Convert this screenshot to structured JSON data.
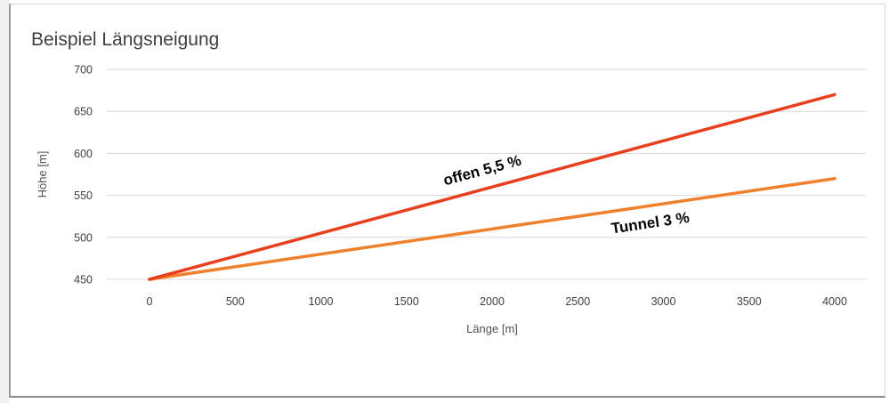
{
  "chart_data": {
    "type": "line",
    "title": "Beispiel Längsneigung",
    "xlabel": "Länge [m]",
    "ylabel": "Höhe [m]",
    "xlim": [
      0,
      4000
    ],
    "ylim": [
      450,
      700
    ],
    "x_ticks": [
      0,
      500,
      1000,
      1500,
      2000,
      2500,
      3000,
      3500,
      4000
    ],
    "y_ticks": [
      450,
      500,
      550,
      600,
      650,
      700
    ],
    "grid": true,
    "legend": "none",
    "series": [
      {
        "name": "offen 5,5 %",
        "color": "#e8401f",
        "x": [
          0,
          4000
        ],
        "y": [
          450,
          670
        ]
      },
      {
        "name": "Tunnel 3 %",
        "color": "#f0802c",
        "x": [
          0,
          4000
        ],
        "y": [
          450,
          570
        ]
      }
    ]
  }
}
